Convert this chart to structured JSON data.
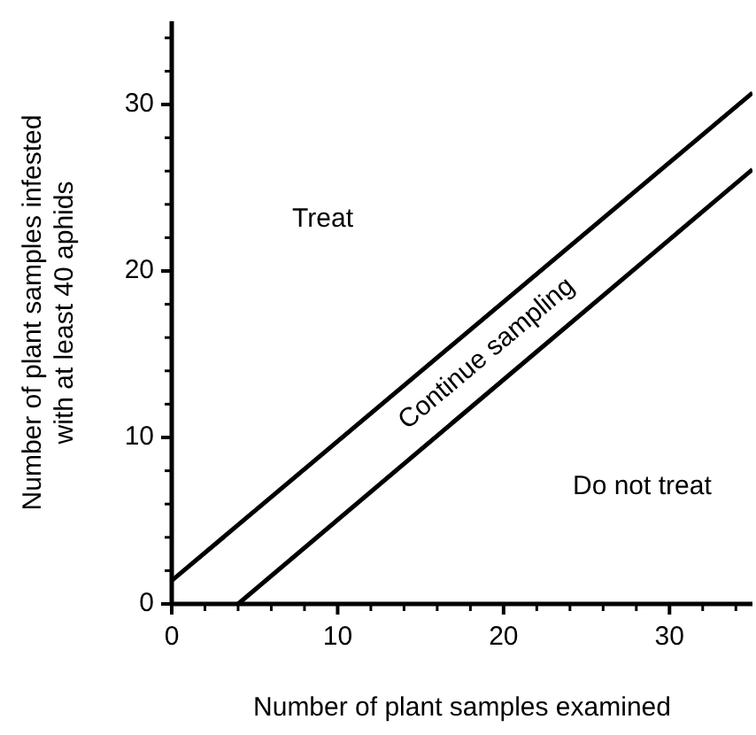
{
  "chart_data": {
    "type": "line",
    "xlabel": "Number of plant samples examined",
    "ylabel": "Number of plant samples infested with at least 40 aphids",
    "series": [
      {
        "color": "#000000",
        "x": [
          0,
          35
        ],
        "values": [
          1.4,
          30.7
        ]
      },
      {
        "color": "#000000",
        "x": [
          4,
          35
        ],
        "values": [
          0,
          26.1
        ]
      }
    ],
    "xlim": [
      0,
      35
    ],
    "ylim": [
      0,
      35
    ],
    "xticks": [
      0,
      {
        "value": 2,
        "label": null
      },
      {
        "value": 4,
        "label": null
      },
      {
        "value": 6,
        "label": null
      },
      {
        "value": 8,
        "label": null
      },
      10,
      {
        "value": 12,
        "label": null
      },
      {
        "value": 14,
        "label": null
      },
      {
        "value": 16,
        "label": null
      },
      {
        "value": 18,
        "label": null
      },
      20,
      {
        "value": 22,
        "label": null
      },
      {
        "value": 24,
        "label": null
      },
      {
        "value": 26,
        "label": null
      },
      {
        "value": 28,
        "label": null
      },
      30,
      {
        "value": 32,
        "label": null
      },
      {
        "value": 34,
        "label": null
      }
    ],
    "yticks": [
      0,
      {
        "value": 2,
        "label": null
      },
      {
        "value": 4,
        "label": null
      },
      {
        "value": 6,
        "label": null
      },
      {
        "value": 8,
        "label": null
      },
      10,
      {
        "value": 12,
        "label": null
      },
      {
        "value": 14,
        "label": null
      },
      {
        "value": 16,
        "label": null
      },
      {
        "value": 18,
        "label": null
      },
      20,
      {
        "value": 22,
        "label": null
      },
      {
        "value": 24,
        "label": null
      },
      {
        "value": 26,
        "label": null
      },
      {
        "value": 28,
        "label": null
      },
      30,
      {
        "value": 32,
        "label": null
      },
      {
        "value": 34,
        "label": null
      }
    ],
    "annotations": [
      "Treat",
      "Continue sampling",
      "Do not treat"
    ],
    "grid": false,
    "legend": false,
    "marker": "none",
    "line_style": "solid"
  }
}
